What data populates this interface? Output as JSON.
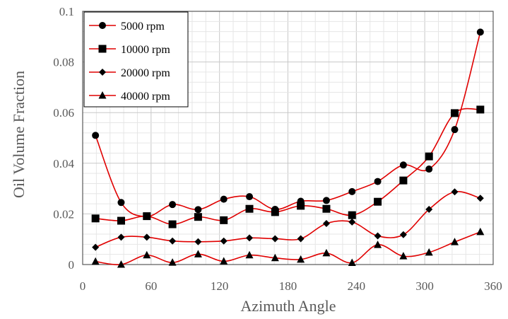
{
  "chart_data": {
    "type": "line",
    "xlabel": "Azimuth Angle",
    "ylabel": "Oil Volume Fraction",
    "xlim": [
      0,
      360
    ],
    "ylim": [
      0,
      0.1
    ],
    "xticks": [
      "0",
      "60",
      "120",
      "180",
      "240",
      "300",
      "360"
    ],
    "yticks": [
      "0",
      "0.02",
      "0.04",
      "0.06",
      "0.08",
      "0.1"
    ],
    "grid": true,
    "legend_position": "top-left",
    "line_color": "#e00000",
    "x": [
      11.25,
      33.75,
      56.25,
      78.75,
      101.25,
      123.75,
      146.25,
      168.75,
      191.25,
      213.75,
      236.25,
      258.75,
      281.25,
      303.75,
      326.25,
      348.75
    ],
    "series": [
      {
        "name": "5000 rpm",
        "marker": "circle",
        "values": [
          0.051,
          0.0245,
          0.019,
          0.0237,
          0.0217,
          0.0258,
          0.0268,
          0.0218,
          0.025,
          0.0253,
          0.0288,
          0.0328,
          0.0393,
          0.0377,
          0.0533,
          0.0918
        ]
      },
      {
        "name": "10000 rpm",
        "marker": "square",
        "values": [
          0.0182,
          0.0173,
          0.0191,
          0.0159,
          0.0188,
          0.0175,
          0.022,
          0.0207,
          0.0232,
          0.022,
          0.0195,
          0.0248,
          0.0332,
          0.0427,
          0.0598,
          0.0612
        ]
      },
      {
        "name": "20000 rpm",
        "marker": "diamond",
        "values": [
          0.0068,
          0.0108,
          0.0108,
          0.0093,
          0.009,
          0.0093,
          0.0105,
          0.0102,
          0.0102,
          0.0162,
          0.0168,
          0.0113,
          0.0118,
          0.0218,
          0.0287,
          0.0262
        ]
      },
      {
        "name": "40000 rpm",
        "marker": "triangle",
        "values": [
          0.0012,
          0.0,
          0.0037,
          0.0008,
          0.0041,
          0.0013,
          0.0037,
          0.0026,
          0.002,
          0.0045,
          0.0007,
          0.0078,
          0.0033,
          0.0048,
          0.0089,
          0.0129
        ]
      }
    ]
  }
}
